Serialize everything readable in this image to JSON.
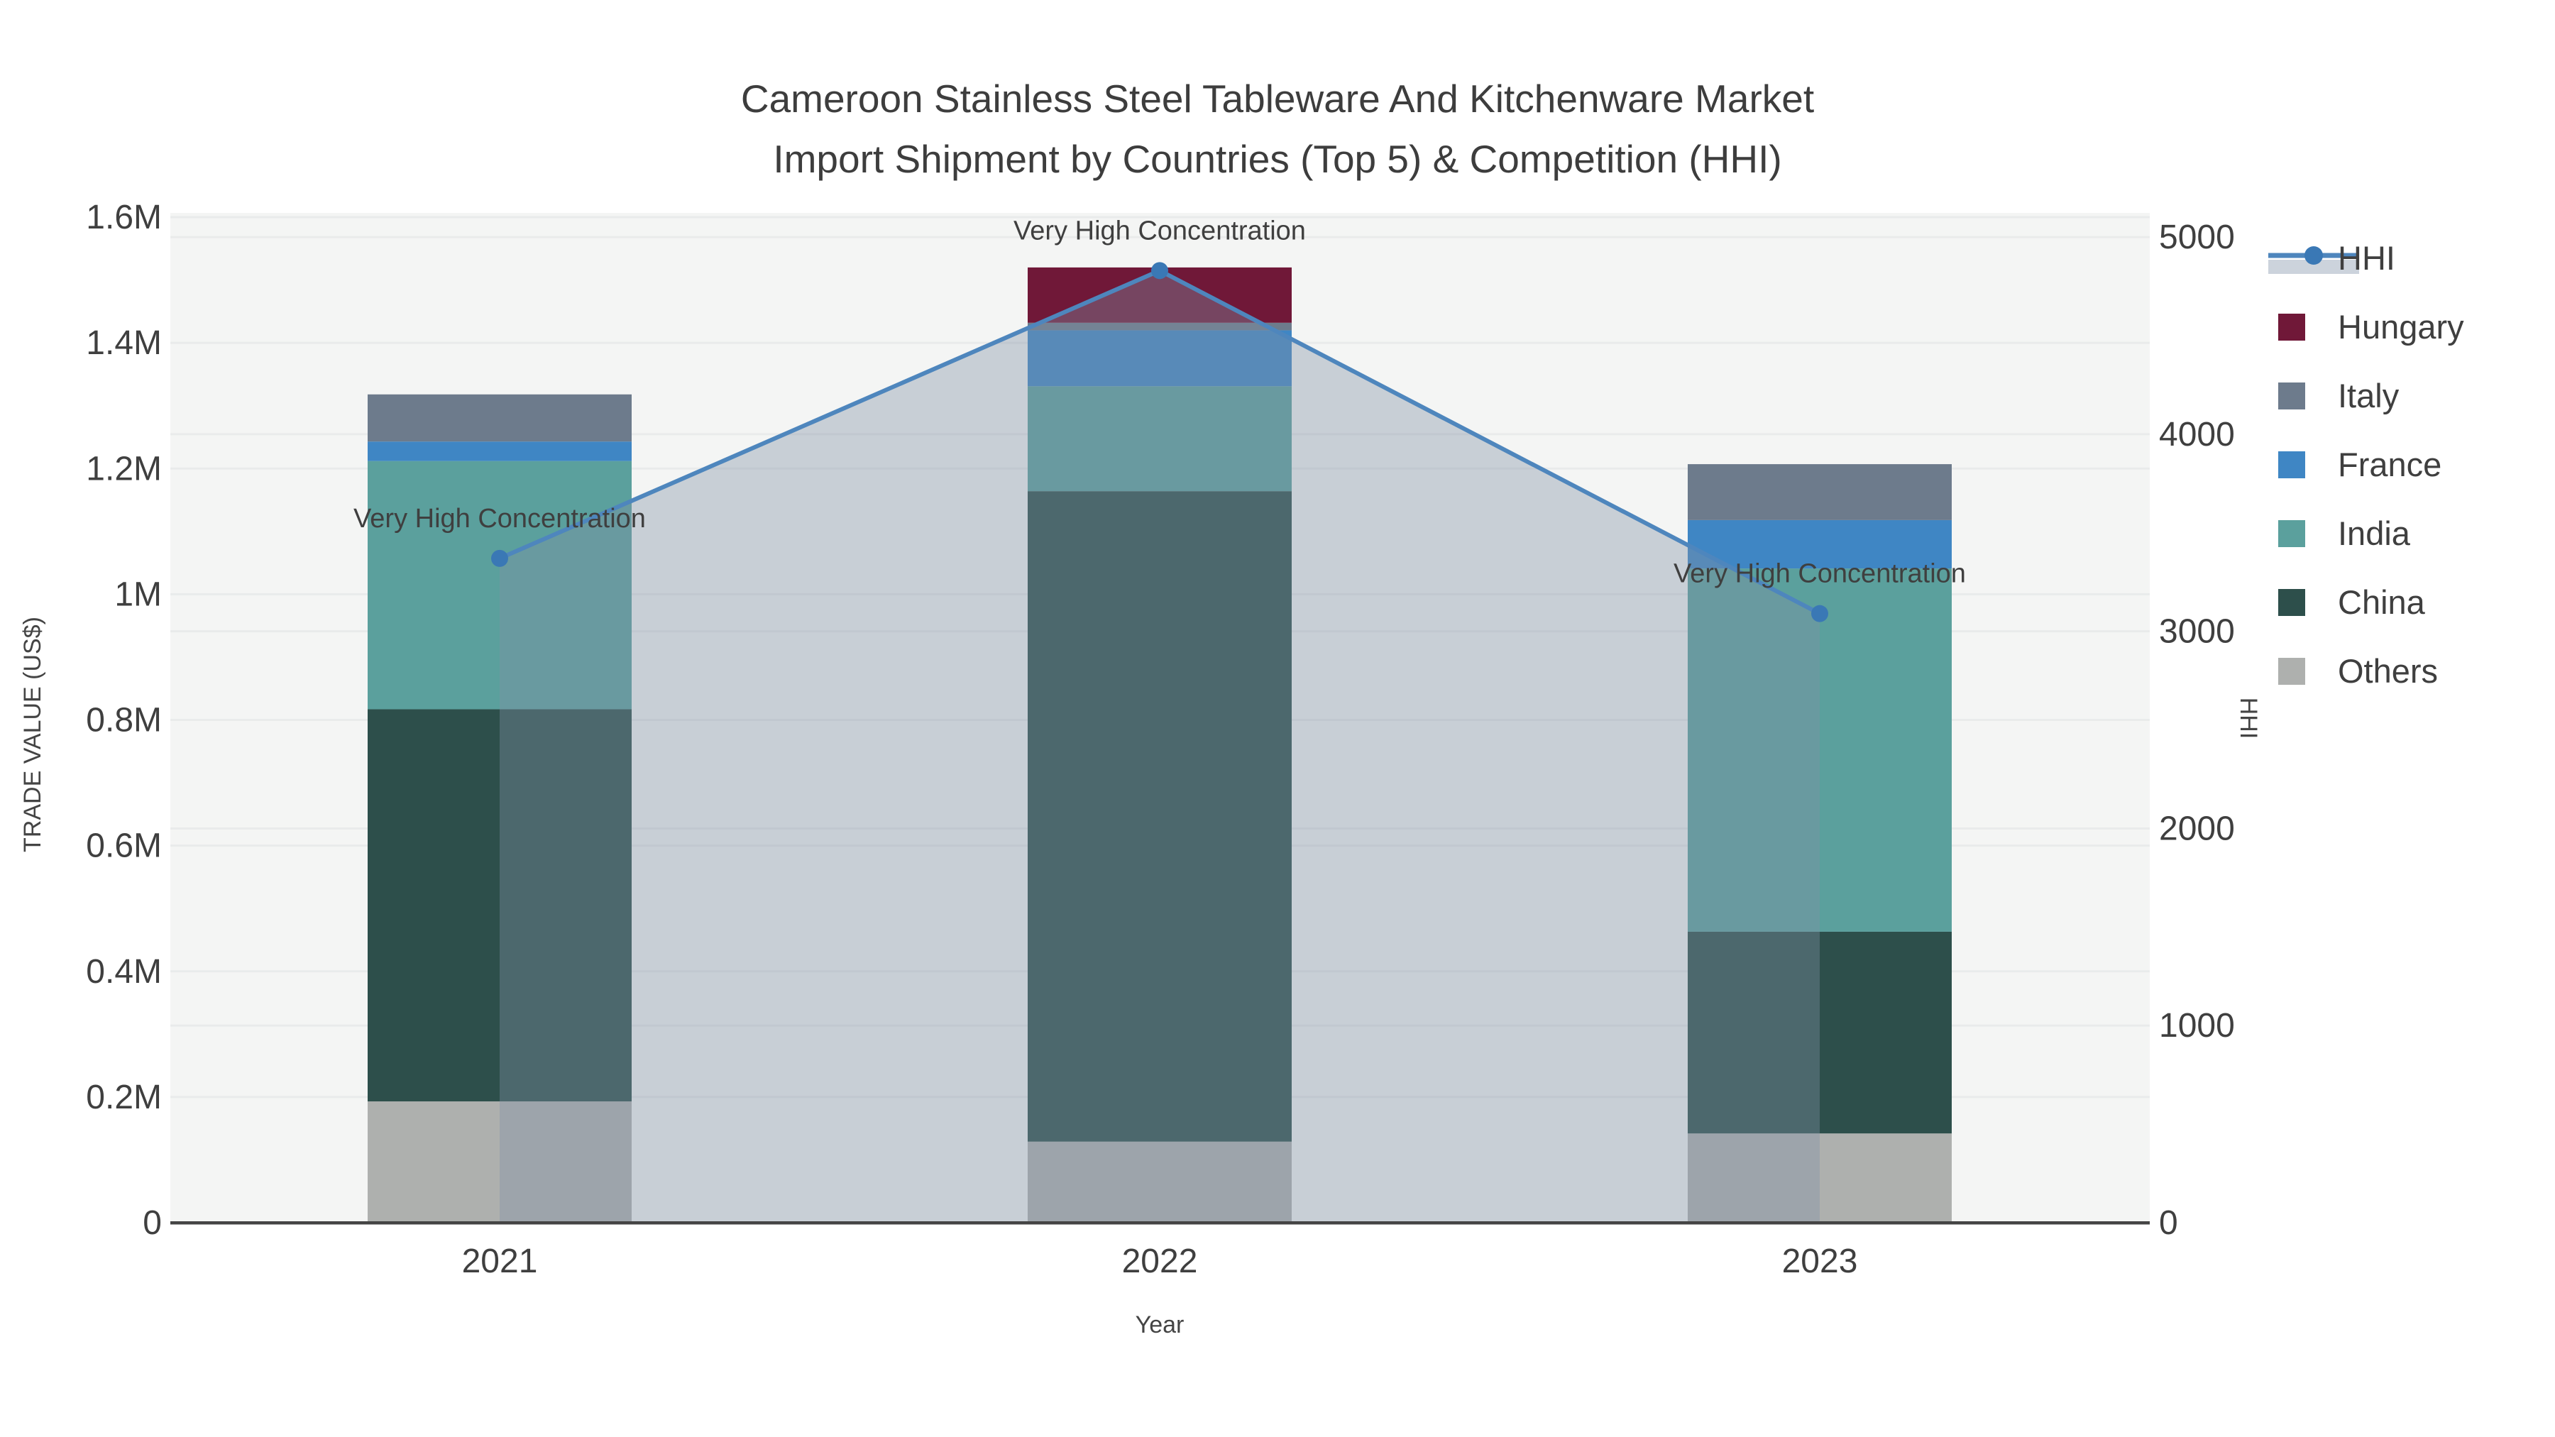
{
  "page": {
    "background": "#ffffff"
  },
  "chart_data": {
    "type": "combo-stacked-bar-line",
    "title": {
      "line1": "Cameroon Stainless Steel Tableware And Kitchenware Market",
      "line2": "Import Shipment by Countries (Top 5) & Competition (HHI)"
    },
    "xlabel": "Year",
    "y1label": "TRADE VALUE (US$)",
    "y2label": "HHI",
    "categories": [
      "2021",
      "2022",
      "2023"
    ],
    "bar_stack_order_bottom_to_top": [
      "Others",
      "China",
      "India",
      "France",
      "Italy",
      "Hungary"
    ],
    "series": [
      {
        "name": "Hungary",
        "color": "#701838",
        "values_usd": [
          0,
          88000,
          0
        ]
      },
      {
        "name": "Italy",
        "color": "#6d7b8c",
        "values_usd": [
          75000,
          12000,
          89000
        ]
      },
      {
        "name": "France",
        "color": "#3f86c4",
        "values_usd": [
          31000,
          89000,
          77000
        ]
      },
      {
        "name": "India",
        "color": "#5ba09d",
        "values_usd": [
          395000,
          167000,
          578000
        ]
      },
      {
        "name": "China",
        "color": "#2d4f4b",
        "values_usd": [
          624000,
          1035000,
          321000
        ]
      },
      {
        "name": "Others",
        "color": "#aeb0ae",
        "values_usd": [
          193000,
          129000,
          142000
        ]
      }
    ],
    "line_series": {
      "name": "HHI",
      "values": [
        3370,
        4830,
        3090
      ],
      "color": "#4e86bd",
      "marker_color": "#3a78b5",
      "area_fill": "rgba(130,145,165,0.38)"
    },
    "annotations": [
      {
        "x": "2021",
        "text": "Very High Concentration"
      },
      {
        "x": "2022",
        "text": "Very High Concentration"
      },
      {
        "x": "2023",
        "text": "Very High Concentration"
      }
    ],
    "y1_axis": {
      "range_usd": [
        0,
        1600000
      ],
      "ticks": [
        {
          "v": 0,
          "label": "0"
        },
        {
          "v": 200000,
          "label": "0.2M"
        },
        {
          "v": 400000,
          "label": "0.4M"
        },
        {
          "v": 600000,
          "label": "0.6M"
        },
        {
          "v": 800000,
          "label": "0.8M"
        },
        {
          "v": 1000000,
          "label": "1M"
        },
        {
          "v": 1200000,
          "label": "1.2M"
        },
        {
          "v": 1400000,
          "label": "1.4M"
        },
        {
          "v": 1600000,
          "label": "1.6M"
        }
      ]
    },
    "y2_axis": {
      "range": [
        0,
        5000
      ],
      "ticks": [
        {
          "v": 0,
          "label": "0"
        },
        {
          "v": 1000,
          "label": "1000"
        },
        {
          "v": 2000,
          "label": "2000"
        },
        {
          "v": 3000,
          "label": "3000"
        },
        {
          "v": 4000,
          "label": "4000"
        },
        {
          "v": 5000,
          "label": "5000"
        }
      ]
    },
    "legend_order": [
      "HHI",
      "Hungary",
      "Italy",
      "France",
      "India",
      "China",
      "Others"
    ],
    "legend_position": "right",
    "grid": true,
    "colors": {
      "plot_bg": "#f4f5f4",
      "grid": "#e9ebeb",
      "axis_line": "#444444",
      "tick_text": "#3f3f3f",
      "annotation_text": "#000000",
      "legend_bg": "#ffffff"
    }
  }
}
